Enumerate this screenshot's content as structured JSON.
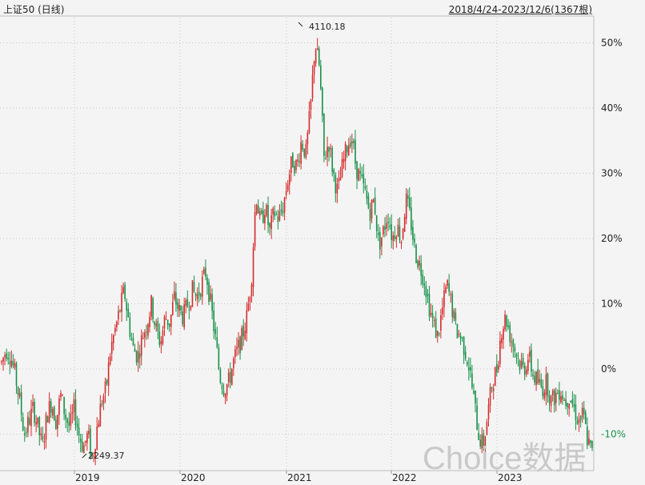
{
  "header": {
    "title": "上证50 (日线)",
    "range": "2018/4/24-2023/12/6(1367根)"
  },
  "watermark": "Choice数据",
  "colors": {
    "up": "#d62b2b",
    "down": "#18914a",
    "grid": "#c8c8c8",
    "axis_neg": "#18914a",
    "axis_pos": "#d62b2b"
  },
  "chart_data": {
    "type": "candlestick",
    "x_tick_labels": [
      "2019",
      "2020",
      "2021",
      "2022",
      "2023"
    ],
    "y_tick_labels": [
      "50%",
      "40%",
      "30%",
      "20%",
      "10%",
      "0%",
      "-10%"
    ],
    "y_ticks": [
      50,
      40,
      30,
      20,
      10,
      0,
      -10
    ],
    "ylim": [
      -15,
      54
    ],
    "annotations": [
      {
        "label": "4110.18",
        "value": 53,
        "kind": "high"
      },
      {
        "label": "2249.37",
        "value": -14,
        "kind": "low"
      }
    ],
    "series": [
      {
        "name": "",
        "values": [
          1,
          3,
          2,
          -1,
          -5,
          -10,
          -8,
          -6,
          -9,
          -12,
          -7,
          -5,
          -8,
          -4,
          -7,
          -9,
          -6,
          -10,
          -12,
          -10,
          -14,
          -9,
          -5,
          -3,
          3,
          6,
          9,
          12,
          7,
          3,
          2,
          5,
          7,
          10,
          6,
          4,
          8,
          7,
          11,
          9,
          8,
          10,
          12,
          11,
          13,
          15,
          10,
          5,
          -1,
          -3,
          -2,
          1,
          3,
          5,
          8,
          14,
          27,
          22,
          25,
          21,
          24,
          23,
          25,
          29,
          32,
          31,
          35,
          33,
          40,
          50,
          46,
          32,
          35,
          30,
          27,
          31,
          34,
          36,
          31,
          29,
          27,
          24,
          26,
          19,
          21,
          24,
          20,
          22,
          20,
          26,
          23,
          18,
          16,
          14,
          10,
          7,
          5,
          9,
          13,
          10,
          6,
          5,
          3,
          0,
          -5,
          -10,
          -12,
          -7,
          -2,
          0,
          6,
          8,
          5,
          3,
          1,
          0,
          2,
          -1,
          -2,
          -3,
          -2,
          -5,
          -4,
          -3,
          -5,
          -4,
          -6,
          -8,
          -7,
          -11,
          -13
        ]
      }
    ]
  }
}
